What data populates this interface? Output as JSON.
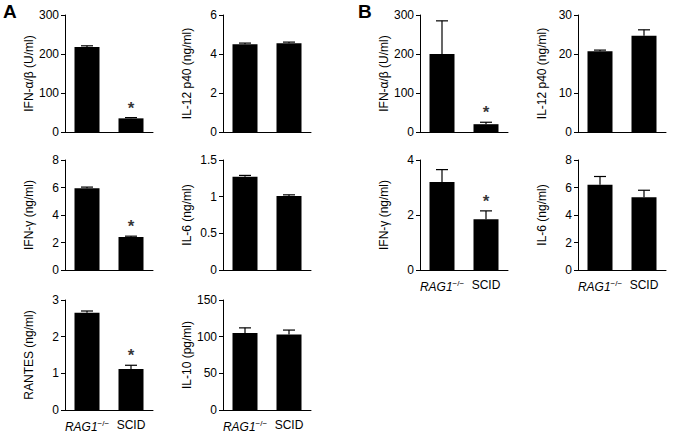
{
  "chart_data": [
    {
      "panel": "A",
      "type": "bar",
      "ylabel": "IFN-α/β (U/ml)",
      "categories": [
        "RAG1−/−",
        "SCID"
      ],
      "values": [
        218,
        35
      ],
      "errors": [
        3,
        2
      ],
      "significance": [
        null,
        "*"
      ],
      "color": "#000000",
      "ylim": [
        0,
        300
      ],
      "yticks": [
        0,
        100,
        200,
        300
      ],
      "grid": false,
      "tick_labels": "y"
    },
    {
      "panel": "A",
      "type": "bar",
      "ylabel": "IL-12 p40 (ng/ml)",
      "categories": [
        "RAG1−/−",
        "SCID"
      ],
      "values": [
        4.5,
        4.55
      ],
      "errors": [
        0.06,
        0.06
      ],
      "significance": [
        null,
        null
      ],
      "color": "#000000",
      "ylim": [
        0,
        6
      ],
      "yticks": [
        0,
        2,
        4,
        6
      ],
      "grid": false,
      "tick_labels": "y"
    },
    {
      "panel": "A",
      "type": "bar",
      "ylabel": "IFN-γ (ng/ml)",
      "categories": [
        "RAG1−/−",
        "SCID"
      ],
      "values": [
        5.95,
        2.4
      ],
      "errors": [
        0.08,
        0.06
      ],
      "significance": [
        null,
        "*"
      ],
      "color": "#000000",
      "ylim": [
        0,
        8
      ],
      "yticks": [
        0,
        2,
        4,
        6,
        8
      ],
      "grid": false,
      "tick_labels": "y"
    },
    {
      "panel": "A",
      "type": "bar",
      "ylabel": "IL-6 (ng/ml)",
      "categories": [
        "RAG1−/−",
        "SCID"
      ],
      "values": [
        1.27,
        1.01
      ],
      "errors": [
        0.02,
        0.015
      ],
      "significance": [
        null,
        null
      ],
      "color": "#000000",
      "ylim": [
        0,
        1.5
      ],
      "yticks": [
        0,
        0.5,
        1,
        1.5
      ],
      "grid": false,
      "tick_labels": "y"
    },
    {
      "panel": "A",
      "type": "bar",
      "ylabel": "RANTES (ng/ml)",
      "categories": [
        "RAG1−/−",
        "SCID"
      ],
      "values": [
        2.65,
        1.12
      ],
      "errors": [
        0.05,
        0.1
      ],
      "significance": [
        null,
        "*"
      ],
      "color": "#000000",
      "ylim": [
        0,
        3
      ],
      "yticks": [
        0,
        1,
        2,
        3
      ],
      "grid": false
    },
    {
      "panel": "A",
      "type": "bar",
      "ylabel": "IL-10 (pg/ml)",
      "categories": [
        "RAG1−/−",
        "SCID"
      ],
      "values": [
        105,
        103
      ],
      "errors": [
        7,
        6
      ],
      "significance": [
        null,
        null
      ],
      "color": "#000000",
      "ylim": [
        0,
        150
      ],
      "yticks": [
        0,
        50,
        100,
        150
      ],
      "grid": false
    },
    {
      "panel": "B",
      "type": "bar",
      "ylabel": "IFN-α/β (U/ml)",
      "categories": [
        "RAG1−/−",
        "SCID"
      ],
      "values": [
        200,
        20
      ],
      "errors": [
        85,
        5
      ],
      "significance": [
        null,
        "*"
      ],
      "color": "#000000",
      "ylim": [
        0,
        300
      ],
      "yticks": [
        0,
        100,
        200,
        300
      ],
      "grid": false,
      "tick_labels": "y"
    },
    {
      "panel": "B",
      "type": "bar",
      "ylabel": "IL-12 p40 (ng/ml)",
      "categories": [
        "RAG1−/−",
        "SCID"
      ],
      "values": [
        20.7,
        24.7
      ],
      "errors": [
        0.3,
        1.5
      ],
      "significance": [
        null,
        null
      ],
      "color": "#000000",
      "ylim": [
        0,
        30
      ],
      "yticks": [
        0,
        10,
        20,
        30
      ],
      "grid": false,
      "tick_labels": "y"
    },
    {
      "panel": "B",
      "type": "bar",
      "ylabel": "IFN-γ (ng/ml)",
      "categories": [
        "RAG1−/−",
        "SCID"
      ],
      "values": [
        3.2,
        1.85
      ],
      "errors": [
        0.45,
        0.3
      ],
      "significance": [
        null,
        "*"
      ],
      "color": "#000000",
      "ylim": [
        0,
        4
      ],
      "yticks": [
        0,
        2,
        4
      ],
      "grid": false
    },
    {
      "panel": "B",
      "type": "bar",
      "ylabel": "IL-6 (ng/ml)",
      "categories": [
        "RAG1−/−",
        "SCID"
      ],
      "values": [
        6.2,
        5.3
      ],
      "errors": [
        0.6,
        0.5
      ],
      "significance": [
        null,
        null
      ],
      "color": "#000000",
      "ylim": [
        0,
        8
      ],
      "yticks": [
        0,
        2,
        4,
        6,
        8
      ],
      "grid": false
    }
  ]
}
